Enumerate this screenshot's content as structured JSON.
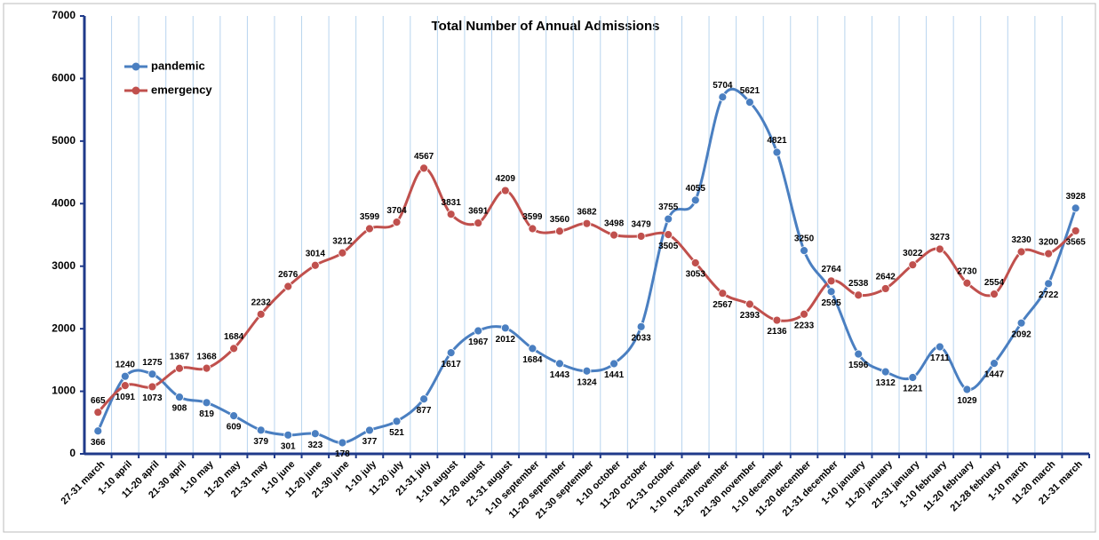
{
  "chart_data": {
    "type": "line",
    "title": "Total Number of Annual Admissions",
    "categories": [
      "27-31 march",
      "1-10 april",
      "11-20 april",
      "21-30 april",
      "1-10 may",
      "11-20 may",
      "21-31 may",
      "1-10 june",
      "11-20 june",
      "21-30 june",
      "1-10 july",
      "11-20 july",
      "21-31 july",
      "1-10 august",
      "11-20 august",
      "21-31 august",
      "1-10 september",
      "11-20 september",
      "21-30 september",
      "1-10 october",
      "11-20 october",
      "21-31 october",
      "1-10 november",
      "11-20 november",
      "21-30 november",
      "1-10 december",
      "11-20  december",
      "21-31  december",
      "1-10 january",
      "11-20 january",
      "21-31 january",
      "1-10 february",
      "11-20 february",
      "21-28 february",
      "1-10 march",
      "11-20 march",
      "21-31 march"
    ],
    "series": [
      {
        "name": "pandemic",
        "color": "#4a7fc1",
        "values": [
          366,
          1240,
          1275,
          908,
          819,
          609,
          379,
          301,
          323,
          178,
          377,
          521,
          877,
          1617,
          1967,
          2012,
          1684,
          1443,
          1324,
          1441,
          2033,
          3755,
          4055,
          5704,
          5621,
          4821,
          3250,
          2595,
          1596,
          1312,
          1221,
          1711,
          1029,
          1447,
          2092,
          2722,
          3928
        ]
      },
      {
        "name": "emergency",
        "color": "#c0504d",
        "values": [
          665,
          1091,
          1073,
          1367,
          1368,
          1684,
          2232,
          2676,
          3014,
          3212,
          3599,
          3704,
          4567,
          3831,
          3691,
          4209,
          3599,
          3560,
          3682,
          3498,
          3479,
          3505,
          3053,
          2567,
          2393,
          2136,
          2233,
          2764,
          2538,
          2642,
          3022,
          3273,
          2730,
          2554,
          3230,
          3200,
          3565
        ]
      }
    ],
    "ylim": [
      0,
      7000
    ],
    "yticks": [
      0,
      1000,
      2000,
      3000,
      4000,
      5000,
      6000,
      7000
    ],
    "grid": true,
    "smooth": true
  }
}
